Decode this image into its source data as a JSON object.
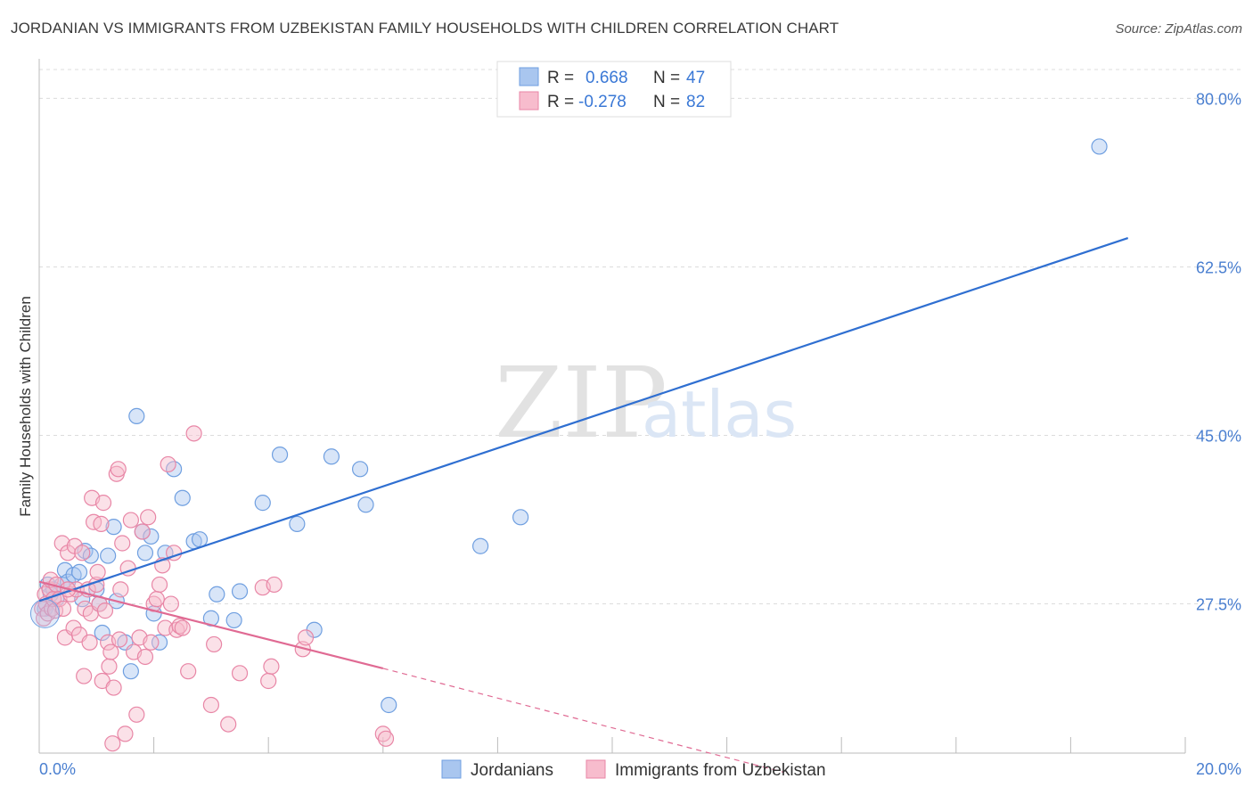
{
  "chart_data": {
    "type": "scatter",
    "title": "JORDANIAN VS IMMIGRANTS FROM UZBEKISTAN FAMILY HOUSEHOLDS WITH CHILDREN CORRELATION CHART",
    "source": "Source: ZipAtlas.com",
    "ylabel": "Family Households with Children",
    "xlim": [
      0,
      20
    ],
    "ylim": [
      12,
      83
    ],
    "x_tick_labels": [
      "0.0%",
      "20.0%"
    ],
    "y_ticks": [
      27.5,
      45.0,
      62.5,
      80.0
    ],
    "y_tick_labels": [
      "27.5%",
      "45.0%",
      "62.5%",
      "80.0%"
    ],
    "watermark": {
      "zip": "ZIP",
      "atlas": "atlas"
    },
    "legend": {
      "r_label": "R =",
      "n_label": "N =",
      "entries": [
        {
          "r": "0.668",
          "n": "47"
        },
        {
          "r": "-0.278",
          "n": "82"
        }
      ]
    },
    "series": [
      {
        "name": "Jordanians",
        "color": "#a9c6ef",
        "edge": "#6f9fe0",
        "line_color": "#2f6fd1",
        "trend": {
          "x0": 0.0,
          "y0": 27.8,
          "x1": 19.0,
          "y1": 65.5
        },
        "points": [
          [
            0.1,
            27.0
          ],
          [
            0.15,
            29.5
          ],
          [
            0.2,
            28.5
          ],
          [
            0.25,
            29.0
          ],
          [
            0.3,
            28.0
          ],
          [
            0.4,
            29.5
          ],
          [
            0.45,
            31.0
          ],
          [
            0.5,
            29.8
          ],
          [
            0.6,
            30.5
          ],
          [
            0.7,
            30.8
          ],
          [
            0.75,
            28.0
          ],
          [
            0.8,
            33.0
          ],
          [
            0.9,
            32.5
          ],
          [
            1.0,
            29.0
          ],
          [
            1.05,
            27.5
          ],
          [
            1.1,
            24.5
          ],
          [
            1.2,
            32.5
          ],
          [
            1.3,
            35.5
          ],
          [
            1.35,
            27.8
          ],
          [
            1.5,
            23.5
          ],
          [
            1.6,
            20.5
          ],
          [
            1.7,
            47.0
          ],
          [
            1.8,
            35.0
          ],
          [
            1.85,
            32.8
          ],
          [
            1.95,
            34.5
          ],
          [
            2.0,
            26.5
          ],
          [
            2.1,
            23.5
          ],
          [
            2.2,
            32.8
          ],
          [
            2.35,
            41.5
          ],
          [
            2.5,
            38.5
          ],
          [
            2.7,
            34.0
          ],
          [
            2.8,
            34.2
          ],
          [
            3.0,
            26.0
          ],
          [
            3.1,
            28.5
          ],
          [
            3.4,
            25.8
          ],
          [
            3.5,
            28.8
          ],
          [
            3.9,
            38.0
          ],
          [
            4.2,
            43.0
          ],
          [
            4.5,
            35.8
          ],
          [
            4.8,
            24.8
          ],
          [
            5.1,
            42.8
          ],
          [
            5.6,
            41.5
          ],
          [
            5.7,
            37.8
          ],
          [
            6.1,
            17.0
          ],
          [
            7.7,
            33.5
          ],
          [
            8.4,
            36.5
          ],
          [
            18.5,
            75.0
          ]
        ]
      },
      {
        "name": "Immigrants from Uzbekistan",
        "color": "#f7bccd",
        "edge": "#e886a6",
        "line_color": "#e06a93",
        "trend": {
          "x0": 0.0,
          "y0": 29.8,
          "x1": 6.0,
          "y1": 20.8
        },
        "trend_dashed": {
          "x0": 6.0,
          "y0": 20.8,
          "x1": 13.0,
          "y1": 10.0
        },
        "points": [
          [
            0.05,
            27.0
          ],
          [
            0.08,
            26.0
          ],
          [
            0.1,
            28.5
          ],
          [
            0.12,
            27.5
          ],
          [
            0.15,
            26.5
          ],
          [
            0.18,
            29.0
          ],
          [
            0.2,
            30.0
          ],
          [
            0.22,
            27.0
          ],
          [
            0.25,
            28.0
          ],
          [
            0.28,
            26.8
          ],
          [
            0.3,
            29.5
          ],
          [
            0.35,
            28.0
          ],
          [
            0.4,
            33.8
          ],
          [
            0.42,
            27.0
          ],
          [
            0.45,
            24.0
          ],
          [
            0.5,
            32.8
          ],
          [
            0.55,
            28.5
          ],
          [
            0.6,
            25.0
          ],
          [
            0.62,
            33.5
          ],
          [
            0.65,
            29.0
          ],
          [
            0.7,
            24.3
          ],
          [
            0.75,
            32.8
          ],
          [
            0.78,
            20.0
          ],
          [
            0.8,
            27.0
          ],
          [
            0.85,
            29.0
          ],
          [
            0.88,
            23.5
          ],
          [
            0.9,
            26.5
          ],
          [
            0.92,
            38.5
          ],
          [
            0.95,
            36.0
          ],
          [
            1.0,
            29.5
          ],
          [
            1.02,
            30.8
          ],
          [
            1.05,
            27.5
          ],
          [
            1.08,
            35.8
          ],
          [
            1.1,
            19.5
          ],
          [
            1.12,
            38.0
          ],
          [
            1.15,
            26.8
          ],
          [
            1.2,
            23.5
          ],
          [
            1.22,
            21.0
          ],
          [
            1.25,
            22.5
          ],
          [
            1.28,
            13.0
          ],
          [
            1.3,
            18.8
          ],
          [
            1.35,
            41.0
          ],
          [
            1.38,
            41.5
          ],
          [
            1.4,
            23.8
          ],
          [
            1.42,
            29.0
          ],
          [
            1.45,
            33.8
          ],
          [
            1.5,
            14.0
          ],
          [
            1.55,
            31.2
          ],
          [
            1.6,
            36.2
          ],
          [
            1.65,
            22.5
          ],
          [
            1.7,
            16.0
          ],
          [
            1.75,
            24.0
          ],
          [
            1.8,
            35.0
          ],
          [
            1.85,
            22.0
          ],
          [
            1.9,
            36.5
          ],
          [
            1.95,
            23.5
          ],
          [
            2.0,
            27.5
          ],
          [
            2.05,
            28.0
          ],
          [
            2.1,
            29.5
          ],
          [
            2.15,
            31.5
          ],
          [
            2.2,
            25.0
          ],
          [
            2.25,
            42.0
          ],
          [
            2.3,
            27.5
          ],
          [
            2.35,
            32.8
          ],
          [
            2.4,
            24.8
          ],
          [
            2.45,
            25.2
          ],
          [
            2.5,
            25.0
          ],
          [
            2.6,
            20.5
          ],
          [
            2.7,
            45.2
          ],
          [
            3.0,
            17.0
          ],
          [
            3.05,
            23.3
          ],
          [
            3.3,
            15.0
          ],
          [
            3.5,
            20.3
          ],
          [
            3.9,
            29.2
          ],
          [
            4.0,
            19.5
          ],
          [
            4.05,
            21.0
          ],
          [
            4.1,
            29.5
          ],
          [
            4.6,
            22.8
          ],
          [
            4.65,
            24.0
          ],
          [
            6.0,
            14.0
          ],
          [
            6.05,
            13.5
          ],
          [
            0.5,
            29.0
          ]
        ]
      }
    ]
  }
}
